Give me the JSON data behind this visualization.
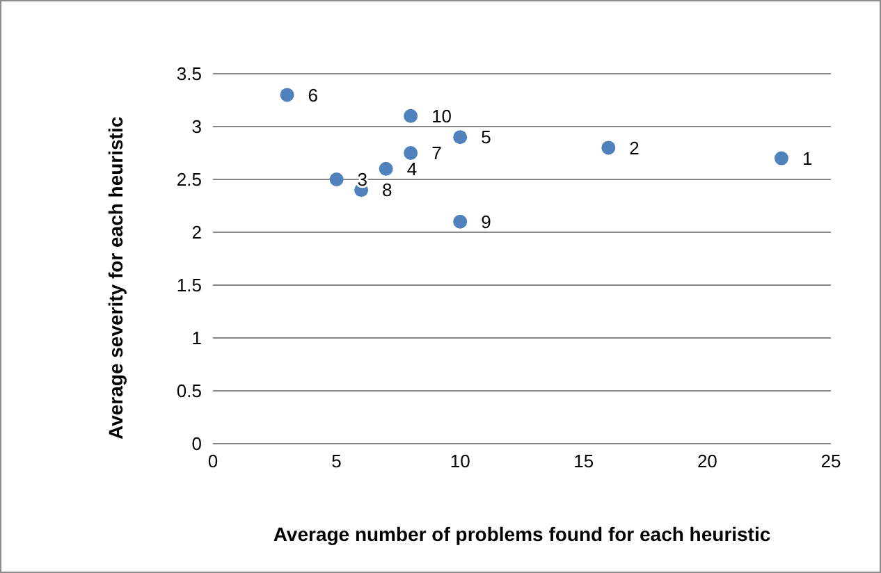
{
  "chart_data": {
    "type": "scatter",
    "xlabel": "Average number of problems found for each heuristic",
    "ylabel": "Average severity for each heuristic",
    "x": [
      23,
      16,
      5,
      7,
      10,
      3,
      8,
      6,
      10,
      8
    ],
    "series": [
      {
        "color": "#4f81bd",
        "values": [
          2.7,
          2.8,
          2.5,
          2.6,
          2.9,
          3.3,
          2.75,
          2.4,
          2.1,
          3.1
        ]
      }
    ],
    "xlim": [
      0,
      25
    ],
    "xticks": [
      0,
      5,
      10,
      15,
      20,
      25
    ],
    "ylim": [
      0,
      3.5
    ],
    "yticks": [
      0,
      0.5,
      1,
      1.5,
      2,
      2.5,
      3,
      3.5
    ],
    "grid": "y",
    "marker": "circle",
    "legend": false,
    "annotations": [
      {
        "text": "1",
        "x": 23,
        "y": 2.7
      },
      {
        "text": "2",
        "x": 16,
        "y": 2.8
      },
      {
        "text": "3",
        "x": 5,
        "y": 2.5
      },
      {
        "text": "4",
        "x": 7,
        "y": 2.6
      },
      {
        "text": "5",
        "x": 10,
        "y": 2.9
      },
      {
        "text": "6",
        "x": 3,
        "y": 3.3
      },
      {
        "text": "7",
        "x": 8,
        "y": 2.75
      },
      {
        "text": "8",
        "x": 6,
        "y": 2.4
      },
      {
        "text": "9",
        "x": 10,
        "y": 2.1
      },
      {
        "text": "10",
        "x": 8,
        "y": 3.1
      }
    ]
  }
}
